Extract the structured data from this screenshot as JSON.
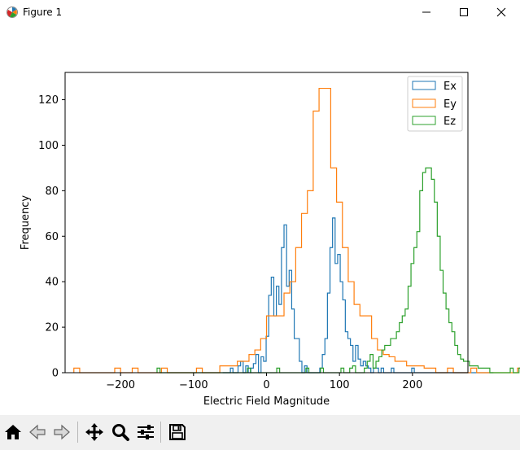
{
  "window": {
    "title": "Figure 1",
    "icon": "matplotlib-icon"
  },
  "window_controls": [
    "minimize-icon",
    "maximize-icon",
    "close-icon"
  ],
  "toolbar": {
    "buttons": [
      "home-icon",
      "back-icon",
      "forward-icon",
      "pan-icon",
      "zoom-icon",
      "configure-subplots-icon",
      "save-icon"
    ]
  },
  "chart_data": {
    "type": "histogram",
    "title": "",
    "xlabel": "Electric Field Magnitude",
    "ylabel": "Frequency",
    "xlim": [
      -276,
      276
    ],
    "ylim": [
      0,
      132
    ],
    "xticks": [
      -200,
      -100,
      0,
      100,
      200
    ],
    "xtick_labels": [
      "−200",
      "−100",
      "0",
      "100",
      "200"
    ],
    "yticks": [
      0,
      20,
      40,
      60,
      80,
      100,
      120
    ],
    "ytick_labels": [
      "0",
      "20",
      "40",
      "60",
      "80",
      "100",
      "120"
    ],
    "grid": false,
    "legend": "upper right",
    "series": [
      {
        "name": "Ex",
        "color": "#1f77b4",
        "x_min": -60,
        "bin_width": 3.5,
        "counts": [
          0,
          0,
          0,
          2,
          0,
          0,
          3,
          5,
          0,
          3,
          0,
          2,
          4,
          8,
          0,
          7,
          5,
          16,
          34,
          42,
          25,
          38,
          30,
          55,
          65,
          38,
          45,
          28,
          15,
          15,
          5,
          0,
          3,
          0,
          0,
          0,
          0,
          0,
          2,
          8,
          15,
          35,
          55,
          68,
          48,
          52,
          40,
          32,
          18,
          15,
          12,
          5,
          12,
          6,
          3,
          5,
          3,
          2,
          0,
          2,
          2,
          0,
          2,
          0,
          0,
          0,
          2,
          0,
          0,
          0,
          0,
          0,
          0,
          0,
          2,
          0,
          0,
          0,
          0,
          0,
          0,
          0,
          0,
          0,
          0,
          0,
          0,
          0,
          0,
          0,
          0,
          0,
          0,
          0,
          0,
          0,
          0,
          0,
          0,
          0,
          0,
          0,
          0,
          0,
          0,
          0
        ]
      },
      {
        "name": "Ey",
        "color": "#ff7f0e",
        "x_min": -264,
        "bin_width": 8,
        "counts": [
          2,
          0,
          0,
          0,
          0,
          0,
          0,
          2,
          0,
          0,
          2,
          0,
          0,
          0,
          0,
          2,
          0,
          0,
          0,
          0,
          0,
          2,
          0,
          0,
          0,
          3,
          3,
          3,
          5,
          5,
          8,
          10,
          15,
          25,
          25,
          25,
          35,
          40,
          55,
          70,
          80,
          115,
          125,
          125,
          90,
          75,
          55,
          40,
          30,
          25,
          25,
          15,
          10,
          8,
          7,
          5,
          5,
          3,
          3,
          3,
          2,
          2,
          0,
          0,
          2,
          0,
          0,
          0,
          2,
          0,
          0,
          0,
          0,
          0,
          0,
          0,
          2,
          0,
          0,
          0,
          0,
          0,
          0,
          0,
          0,
          0,
          0,
          0,
          0,
          0,
          0,
          0,
          0,
          0,
          0,
          0,
          0,
          0,
          0,
          0,
          0,
          0,
          0,
          0,
          0,
          0,
          0,
          0,
          0,
          0,
          0,
          0,
          0,
          0,
          0,
          0,
          0,
          0,
          0,
          0,
          0,
          0,
          0,
          0,
          0,
          0,
          0,
          0,
          0,
          0,
          0,
          0,
          0,
          2
        ]
      },
      {
        "name": "Ez",
        "color": "#2ca02c",
        "x_min": -150,
        "bin_width": 4,
        "counts": [
          2,
          0,
          0,
          0,
          0,
          0,
          0,
          0,
          0,
          0,
          0,
          0,
          0,
          0,
          0,
          0,
          0,
          0,
          0,
          0,
          0,
          0,
          0,
          0,
          0,
          0,
          0,
          0,
          0,
          0,
          0,
          2,
          0,
          0,
          0,
          0,
          0,
          0,
          0,
          0,
          0,
          2,
          0,
          0,
          0,
          0,
          0,
          0,
          0,
          0,
          0,
          2,
          0,
          0,
          0,
          0,
          2,
          0,
          0,
          0,
          0,
          0,
          0,
          2,
          0,
          0,
          2,
          3,
          0,
          0,
          0,
          2,
          5,
          8,
          2,
          5,
          7,
          10,
          12,
          12,
          15,
          15,
          18,
          22,
          25,
          28,
          38,
          48,
          55,
          62,
          80,
          88,
          90,
          90,
          85,
          75,
          60,
          45,
          35,
          28,
          22,
          18,
          12,
          8,
          6,
          5,
          5,
          3,
          3,
          3,
          2,
          2,
          2,
          2,
          0,
          0,
          0,
          0,
          0,
          0,
          0,
          2,
          0,
          0,
          2,
          0,
          0,
          0,
          0,
          0,
          0,
          0,
          0,
          0,
          0,
          0,
          0,
          0,
          0,
          0,
          2,
          0,
          0,
          0,
          0,
          0,
          0,
          0,
          0,
          0,
          0,
          0,
          0,
          0,
          0,
          0,
          0,
          0,
          0,
          0,
          0,
          0,
          0,
          0,
          0,
          0,
          0,
          0,
          0,
          0,
          0,
          0,
          0,
          0,
          0,
          0,
          2
        ]
      }
    ]
  }
}
